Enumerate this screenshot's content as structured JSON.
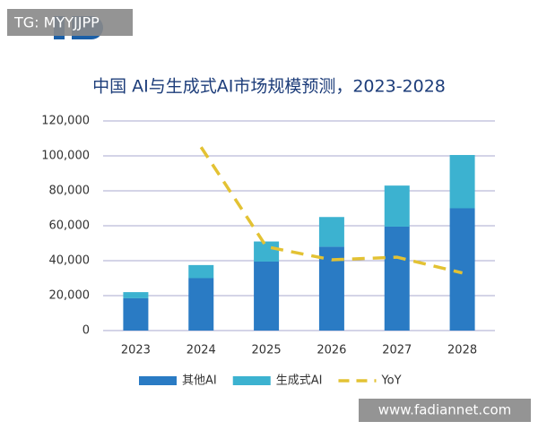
{
  "chart_data": {
    "type": "stacked-bar-line",
    "title": "中国 AI与生成式AI市场规模预测，2023-2028",
    "categories": [
      "2023",
      "2024",
      "2025",
      "2026",
      "2027",
      "2028"
    ],
    "series": [
      {
        "name": "其他AI",
        "color": "#2a7bc4",
        "values": [
          18500,
          30000,
          39500,
          48000,
          59500,
          70000
        ]
      },
      {
        "name": "生成式AI",
        "color": "#3cb2d0",
        "values": [
          3500,
          7500,
          11500,
          17000,
          23500,
          30500
        ]
      },
      {
        "name": "YoY",
        "color": "#e3c233",
        "axis": "y2",
        "style": "dashed",
        "values": [
          null,
          70,
          32,
          27,
          28,
          22
        ]
      }
    ],
    "ylim": [
      0,
      120000
    ],
    "yticks": [
      0,
      {
        "value": 20000,
        "label": "20,000"
      },
      {
        "value": 40000,
        "label": "40,000"
      },
      {
        "value": 60000,
        "label": "60,000"
      },
      {
        "value": 80000,
        "label": "80,000"
      },
      {
        "value": 100000,
        "label": "100,000"
      },
      {
        "value": 120000,
        "label": "120,000"
      }
    ],
    "y2lim": [
      0,
      80
    ],
    "grid": true,
    "legend": "bottom"
  },
  "watermarks": {
    "top": "TG: MYYJJPP",
    "bottom": "www.fadiannet.com"
  }
}
